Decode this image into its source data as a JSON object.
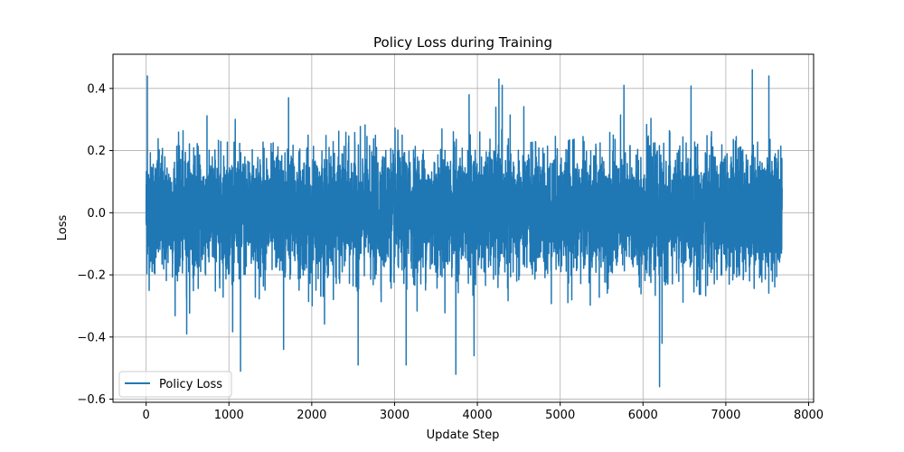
{
  "chart_data": {
    "type": "line",
    "title": "Policy Loss during Training",
    "xlabel": "Update Step",
    "ylabel": "Loss",
    "xlim": [
      -400,
      8060
    ],
    "ylim": [
      -0.61,
      0.51
    ],
    "xticks": [
      0,
      1000,
      2000,
      3000,
      4000,
      5000,
      6000,
      7000,
      8000
    ],
    "xtick_labels": [
      "0",
      "1000",
      "2000",
      "3000",
      "4000",
      "5000",
      "6000",
      "7000",
      "8000"
    ],
    "yticks": [
      -0.6,
      -0.4,
      -0.2,
      0.0,
      0.2,
      0.4
    ],
    "ytick_labels": [
      "−0.6",
      "−0.4",
      "−0.2",
      "0.0",
      "0.2",
      "0.4"
    ],
    "grid": true,
    "legend": "lower-left",
    "series": [
      {
        "name": "Policy Loss",
        "color": "#1f77b4",
        "x_range": [
          0,
          7680
        ],
        "typical_band": [
          -0.2,
          0.2
        ],
        "peaks": [
          {
            "x": 15,
            "y": 0.44
          },
          {
            "x": 1720,
            "y": 0.37
          },
          {
            "x": 3900,
            "y": 0.38
          },
          {
            "x": 4260,
            "y": 0.43
          },
          {
            "x": 4300,
            "y": 0.41
          },
          {
            "x": 5770,
            "y": 0.41
          },
          {
            "x": 7320,
            "y": 0.46
          },
          {
            "x": 7520,
            "y": 0.44
          }
        ],
        "troughs": [
          {
            "x": 490,
            "y": -0.39
          },
          {
            "x": 1140,
            "y": -0.51
          },
          {
            "x": 1660,
            "y": -0.44
          },
          {
            "x": 2560,
            "y": -0.49
          },
          {
            "x": 3140,
            "y": -0.49
          },
          {
            "x": 3740,
            "y": -0.52
          },
          {
            "x": 3960,
            "y": -0.46
          },
          {
            "x": 6200,
            "y": -0.56
          },
          {
            "x": 6230,
            "y": -0.42
          }
        ]
      }
    ]
  }
}
